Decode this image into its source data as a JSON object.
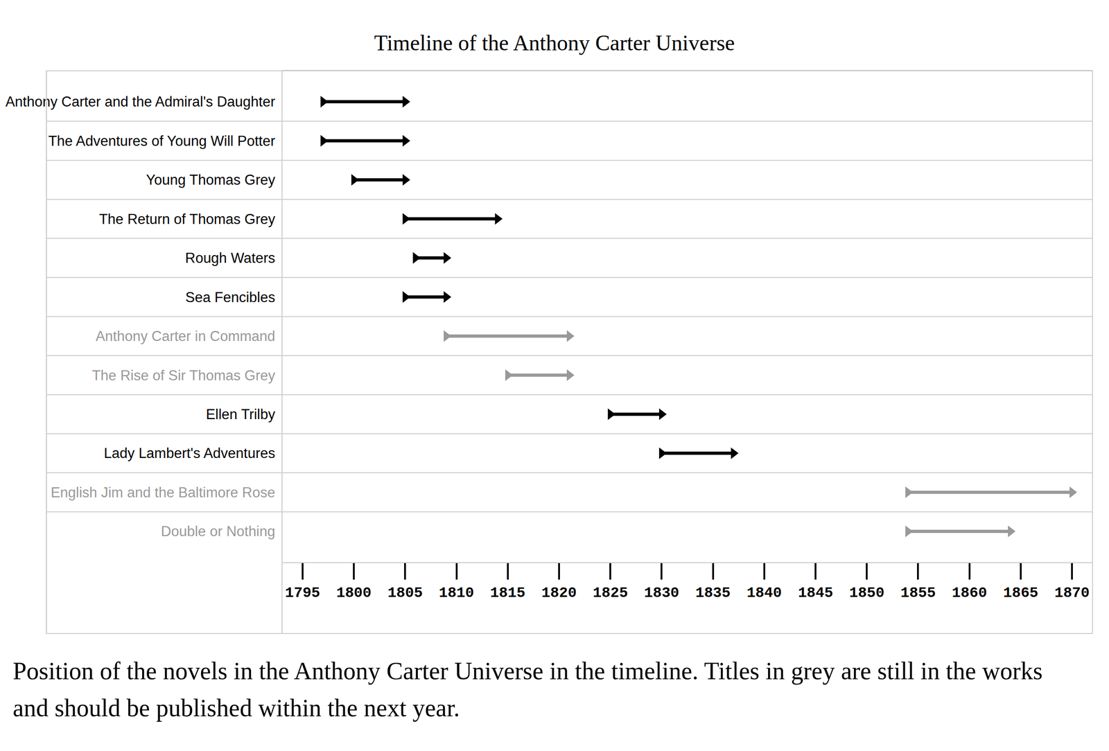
{
  "chart_data": {
    "type": "timeline",
    "title": "Timeline of the Anthony Carter Universe",
    "caption": "Position of the novels in the Anthony Carter Universe in the timeline. Titles in grey are still in the works and should be published within the next year.",
    "series": [
      {
        "name": "Anthony Carter and the Admiral's Daughter",
        "start": 1797,
        "end": 1805,
        "color": "#000000"
      },
      {
        "name": "The Adventures of Young Will Potter",
        "start": 1797,
        "end": 1805,
        "color": "#000000"
      },
      {
        "name": "Young Thomas Grey",
        "start": 1800,
        "end": 1805,
        "color": "#000000"
      },
      {
        "name": "The Return of Thomas Grey",
        "start": 1805,
        "end": 1814,
        "color": "#000000"
      },
      {
        "name": "Rough Waters",
        "start": 1806,
        "end": 1809,
        "color": "#000000"
      },
      {
        "name": "Sea Fencibles",
        "start": 1805,
        "end": 1809,
        "color": "#000000"
      },
      {
        "name": "Anthony Carter in Command",
        "start": 1809,
        "end": 1821,
        "color": "#999999"
      },
      {
        "name": "The Rise of Sir Thomas Grey",
        "start": 1815,
        "end": 1821,
        "color": "#999999"
      },
      {
        "name": "Ellen Trilby",
        "start": 1825,
        "end": 1830,
        "color": "#000000"
      },
      {
        "name": "Lady Lambert's Adventures",
        "start": 1830,
        "end": 1837,
        "color": "#000000"
      },
      {
        "name": "English Jim and the Baltimore Rose",
        "start": 1854,
        "end": 1870,
        "color": "#999999"
      },
      {
        "name": "Double or Nothing",
        "start": 1854,
        "end": 1864,
        "color": "#999999"
      }
    ],
    "xlim": [
      1793,
      1872
    ],
    "xticks": [
      1795,
      1800,
      1805,
      1810,
      1815,
      1820,
      1825,
      1830,
      1835,
      1840,
      1845,
      1850,
      1855,
      1860,
      1865,
      1870
    ],
    "grid": false,
    "marker": "triangle-right"
  }
}
